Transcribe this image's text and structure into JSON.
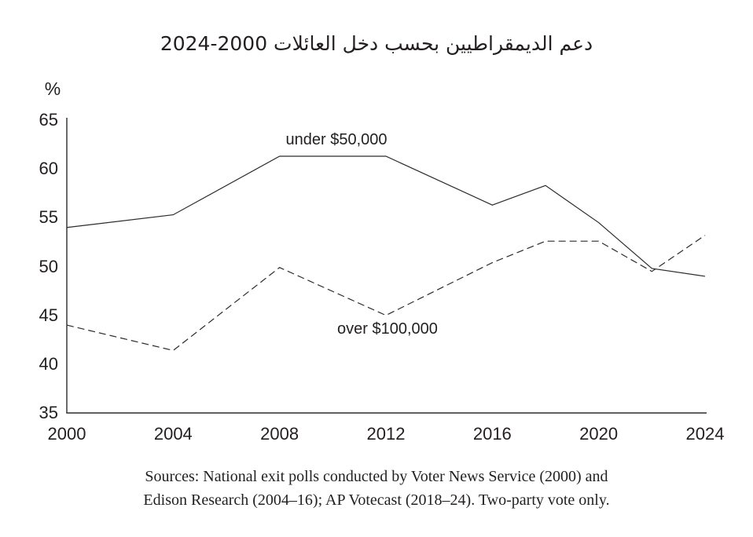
{
  "title": "دعم الديمقراطيين بحسب دخل العائلات 2000-2024",
  "chart_data": {
    "type": "line",
    "x": [
      2000,
      2004,
      2008,
      2012,
      2016,
      2018,
      2020,
      2022,
      2024
    ],
    "series": [
      {
        "name": "under $50,000",
        "style": "solid",
        "values": [
          54.0,
          55.3,
          61.3,
          61.3,
          56.3,
          58.3,
          54.5,
          49.8,
          49.0
        ]
      },
      {
        "name": "over $100,000",
        "style": "dashed",
        "values": [
          44.0,
          41.4,
          49.9,
          45.0,
          50.4,
          52.6,
          52.6,
          49.5,
          53.2
        ]
      }
    ],
    "xlim": [
      2000,
      2024
    ],
    "ylim": [
      35,
      65
    ],
    "x_ticks": [
      2000,
      2004,
      2008,
      2012,
      2016,
      2020,
      2024
    ],
    "y_ticks": [
      65,
      60,
      55,
      50,
      45,
      40,
      35
    ],
    "ylabel": "%",
    "grid": false,
    "legend_position": "inline-annotations-on-lines",
    "line_color": "#2b2b2b"
  },
  "sources": [
    "Sources: National exit polls conducted by Voter News Service (2000) and",
    "Edison Research (2004–16); AP Votecast (2018–24). Two-party vote only."
  ],
  "colors": {
    "background": "#ffffff",
    "text": "#231f20",
    "line": "#2b2b2b"
  }
}
